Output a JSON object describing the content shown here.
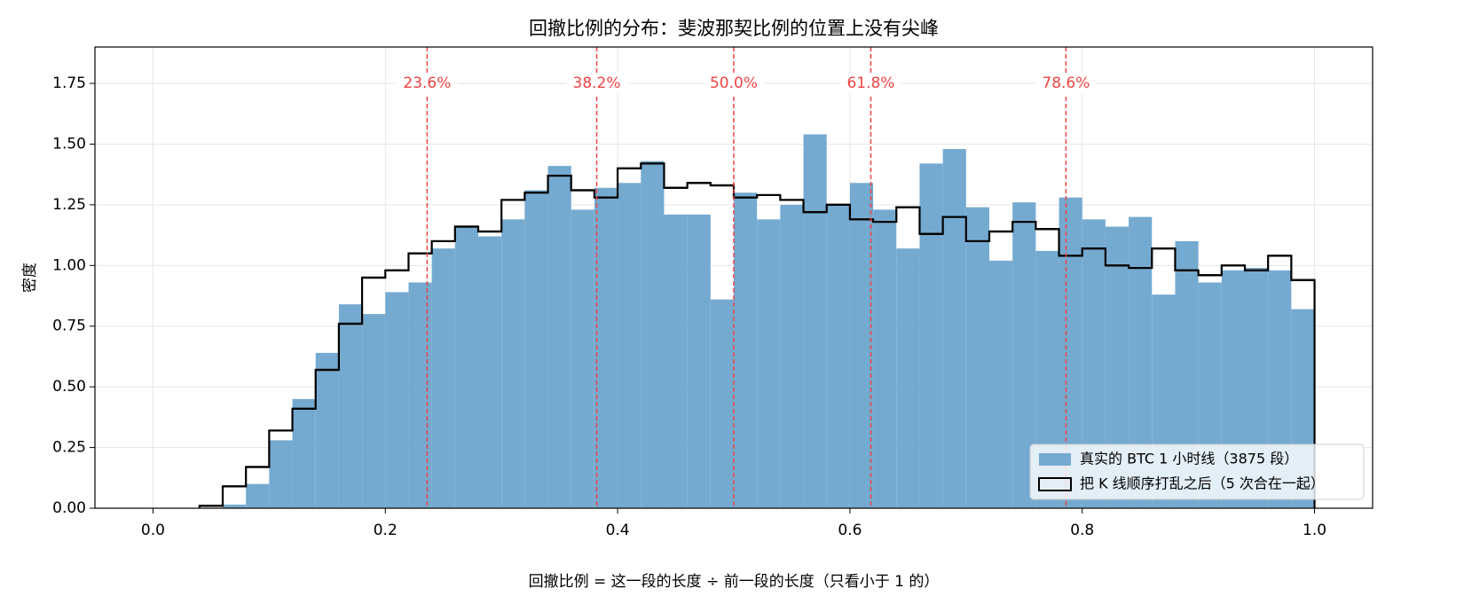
{
  "chart_data": {
    "type": "histogram",
    "title": "回撤比例的分布：斐波那契比例的位置上没有尖峰",
    "xlabel": "回撤比例 = 这一段的长度 ÷ 前一段的长度（只看小于 1 的）",
    "ylabel": "密度",
    "bins": [
      0,
      0.02,
      0.04,
      0.06,
      0.08,
      0.1,
      0.12,
      0.14,
      0.16,
      0.18,
      0.2,
      0.22,
      0.24,
      0.26,
      0.28,
      0.3,
      0.32,
      0.34,
      0.36,
      0.38,
      0.4,
      0.42,
      0.44,
      0.46,
      0.48,
      0.5,
      0.52,
      0.54,
      0.56,
      0.58,
      0.6,
      0.62,
      0.64,
      0.66,
      0.68,
      0.7,
      0.72,
      0.74,
      0.76,
      0.78,
      0.8,
      0.82,
      0.84,
      0.86,
      0.88,
      0.9,
      0.92,
      0.94,
      0.96,
      0.98,
      1
    ],
    "series": [
      {
        "name": "真实的 BTC 1 小时线（3875 段）",
        "color": "#75aad0",
        "style": "bar",
        "values": [
          0,
          0,
          0,
          0.015,
          0.1,
          0.28,
          0.45,
          0.64,
          0.84,
          0.8,
          0.89,
          0.93,
          1.07,
          1.16,
          1.12,
          1.19,
          1.31,
          1.41,
          1.23,
          1.32,
          1.34,
          1.43,
          1.21,
          1.21,
          0.86,
          1.3,
          1.19,
          1.25,
          1.54,
          1.25,
          1.34,
          1.23,
          1.07,
          1.42,
          1.48,
          1.24,
          1.02,
          1.26,
          1.06,
          1.28,
          1.19,
          1.16,
          1.2,
          0.88,
          1.1,
          0.93,
          0.98,
          0.99,
          0.98,
          0.82
        ]
      },
      {
        "name": "把 K 线顺序打乱之后（5 次合在一起）",
        "color": "#000000",
        "style": "step",
        "values": [
          0,
          0,
          0.01,
          0.09,
          0.17,
          0.32,
          0.41,
          0.57,
          0.76,
          0.95,
          0.98,
          1.05,
          1.1,
          1.16,
          1.14,
          1.27,
          1.3,
          1.37,
          1.31,
          1.28,
          1.4,
          1.42,
          1.32,
          1.34,
          1.33,
          1.28,
          1.29,
          1.27,
          1.22,
          1.25,
          1.19,
          1.18,
          1.24,
          1.13,
          1.2,
          1.1,
          1.14,
          1.18,
          1.15,
          1.04,
          1.07,
          1,
          0.99,
          1.07,
          0.98,
          0.96,
          1,
          0.98,
          1.04,
          0.94
        ]
      }
    ],
    "annotations": [
      {
        "value": 0.236,
        "label": "23.6%"
      },
      {
        "value": 0.382,
        "label": "38.2%"
      },
      {
        "value": 0.5,
        "label": "50.0%"
      },
      {
        "value": 0.618,
        "label": "61.8%"
      },
      {
        "value": 0.786,
        "label": "78.6%"
      }
    ],
    "annotation_color": "#ee4444",
    "xlim": [
      -0.05,
      1.05
    ],
    "ylim": [
      0,
      1.9
    ],
    "xticks": [
      {
        "value": 0,
        "label": "0.0"
      },
      0.2,
      0.4,
      0.6,
      0.8,
      {
        "value": 1,
        "label": "1.0"
      }
    ],
    "yticks": [
      {
        "value": 0,
        "label": "0.00"
      },
      0.25,
      {
        "value": 0.5,
        "label": "0.50"
      },
      0.75,
      {
        "value": 1,
        "label": "1.00"
      },
      1.25,
      {
        "value": 1.5,
        "label": "1.50"
      },
      1.75
    ],
    "grid": true,
    "legend": "lower right"
  }
}
